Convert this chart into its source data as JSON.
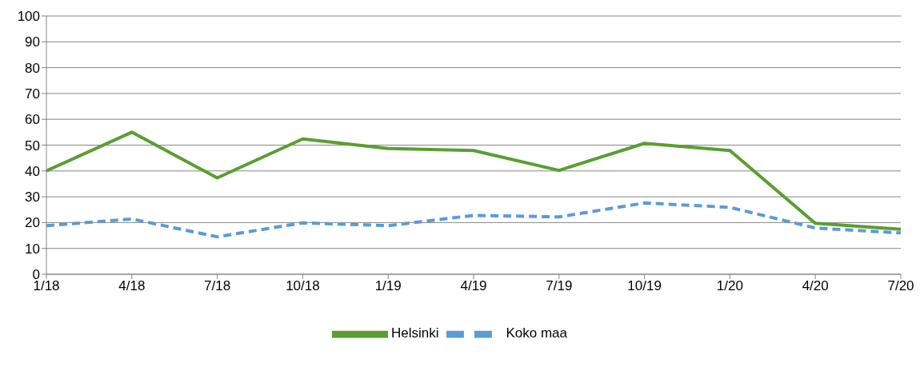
{
  "chart_data": {
    "type": "line",
    "categories": [
      "1/18",
      "4/18",
      "7/18",
      "10/18",
      "1/19",
      "4/19",
      "7/19",
      "10/19",
      "1/20",
      "4/20",
      "7/20"
    ],
    "series": [
      {
        "name": "Helsinki",
        "color": "#5a9e32",
        "line_style": "solid",
        "values": [
          40,
          55,
          37.3,
          52.4,
          48.7,
          47.9,
          40.2,
          50.7,
          47.9,
          19.7,
          17.4
        ]
      },
      {
        "name": "Koko maa",
        "color": "#5b9bd5",
        "line_style": "dashed",
        "values": [
          18.8,
          21.4,
          14.5,
          19.9,
          18.8,
          22.8,
          22.2,
          27.6,
          25.9,
          17.9,
          16
        ]
      }
    ],
    "ylim": [
      0,
      100
    ],
    "yticks": [
      0,
      10,
      20,
      30,
      40,
      50,
      60,
      70,
      80,
      90,
      100
    ],
    "grid": "y",
    "legend": "bottom",
    "marker": "none"
  }
}
